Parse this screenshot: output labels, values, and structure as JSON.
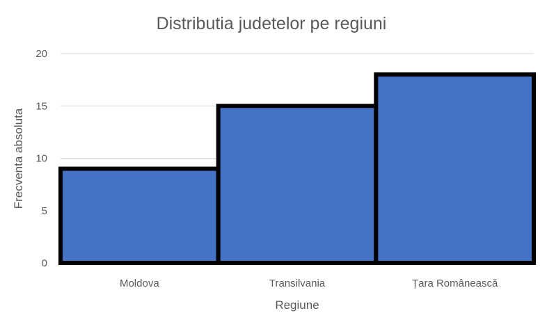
{
  "chart_data": {
    "type": "bar",
    "title": "Distributia judetelor pe regiuni",
    "xlabel": "Regiune",
    "ylabel": "Frecventa absoluta",
    "categories": [
      "Moldova",
      "Transilvania",
      "Țara Românească"
    ],
    "values": [
      9,
      15,
      18
    ],
    "ylim": [
      0,
      20
    ],
    "yticks": [
      "0",
      "5",
      "10",
      "15",
      "20"
    ],
    "grid": true,
    "legend": "none",
    "bar_color": "#4472c4",
    "bar_edge_color": "#000000"
  }
}
